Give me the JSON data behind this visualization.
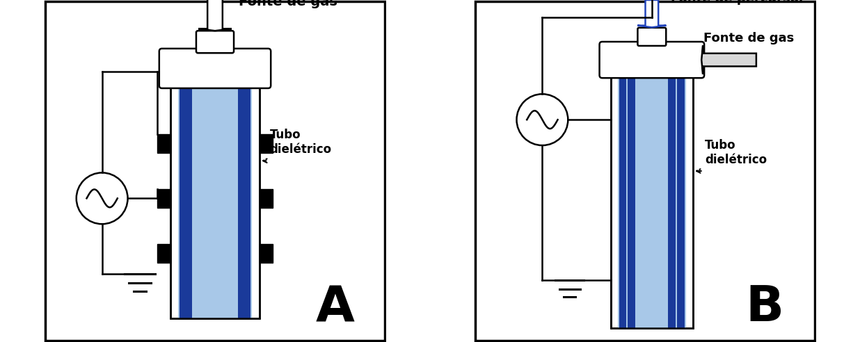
{
  "fig_width": 12.36,
  "fig_height": 4.92,
  "bg_color": "#ffffff",
  "border_color": "#000000",
  "light_blue": "#a8c8e8",
  "med_blue": "#4488cc",
  "dark_blue": "#1a3a9a",
  "navy": "#0d1f6e",
  "black": "#000000",
  "white": "#ffffff",
  "gray": "#aaaaaa",
  "light_gray": "#d8d8d8",
  "panel_A_label": "A",
  "panel_B_label": "B",
  "label_fonte_gas_A": "Fonte de gas",
  "label_tubo_A": "Tubo\ndielétrico",
  "label_fonte_percursor_B": "Fonte de percursor",
  "label_fonte_gas_B": "Fonte de gas",
  "label_tubo_B": "Tubo\ndielétrico"
}
